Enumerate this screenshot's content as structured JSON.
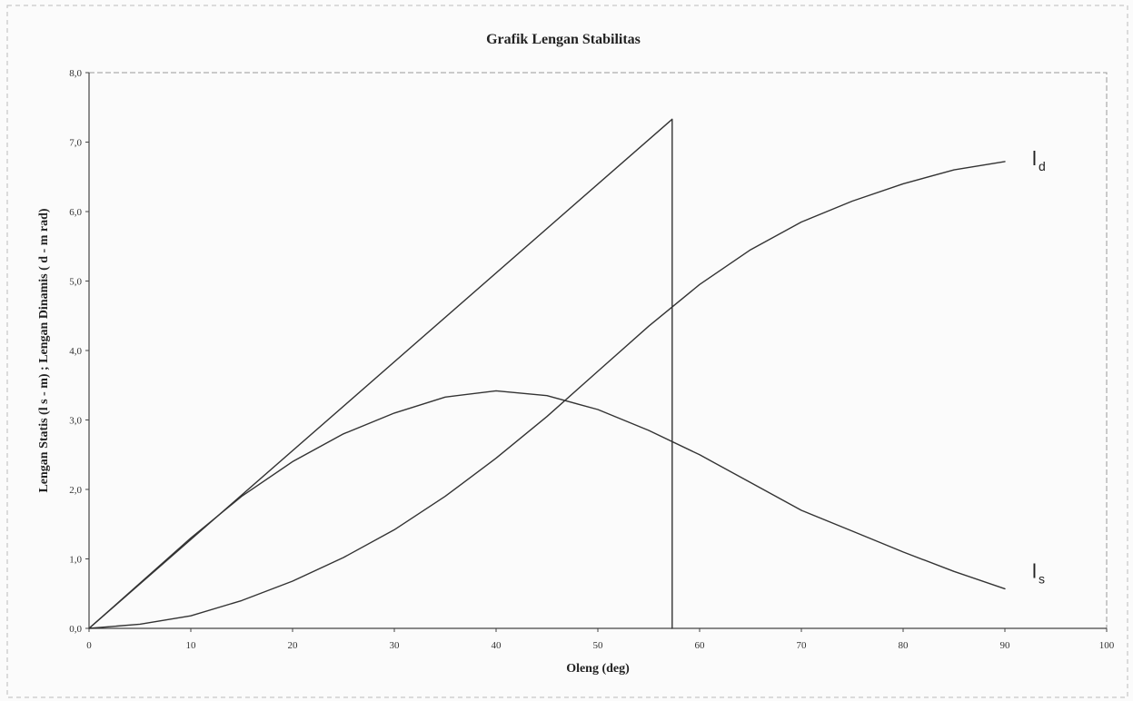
{
  "chart_data": {
    "type": "line",
    "title": "Grafik Lengan Stabilitas",
    "xlabel": "Oleng (deg)",
    "ylabel": "Lengan Statis (l s - m) ; Lengan Dinamis ( d - m rad)",
    "xlim": [
      0,
      100
    ],
    "ylim": [
      0,
      8
    ],
    "x_ticks": [
      "0",
      "10",
      "20",
      "30",
      "40",
      "50",
      "60",
      "70",
      "80",
      "90",
      "100"
    ],
    "y_ticks": [
      "0,0",
      "1,0",
      "2,0",
      "3,0",
      "4,0",
      "5,0",
      "6,0",
      "7,0",
      "8,0"
    ],
    "grid": false,
    "series": [
      {
        "name": "l_s",
        "label_main": "l",
        "label_sub": "s",
        "x": [
          0,
          5,
          10,
          15,
          20,
          25,
          30,
          35,
          40,
          45,
          50,
          55,
          60,
          65,
          70,
          75,
          80,
          85,
          90
        ],
        "y": [
          0,
          0.65,
          1.3,
          1.9,
          2.4,
          2.8,
          3.1,
          3.33,
          3.42,
          3.35,
          3.15,
          2.85,
          2.5,
          2.1,
          1.7,
          1.4,
          1.1,
          0.82,
          0.57
        ]
      },
      {
        "name": "l_d",
        "label_main": "l",
        "label_sub": "d",
        "x": [
          0,
          5,
          10,
          15,
          20,
          25,
          30,
          35,
          40,
          45,
          50,
          55,
          60,
          65,
          70,
          75,
          80,
          85,
          90
        ],
        "y": [
          0,
          0.06,
          0.18,
          0.4,
          0.68,
          1.02,
          1.42,
          1.9,
          2.45,
          3.05,
          3.7,
          4.35,
          4.95,
          5.45,
          5.85,
          6.15,
          6.4,
          6.6,
          6.72
        ]
      },
      {
        "name": "tangent",
        "x": [
          0,
          57.3,
          57.3
        ],
        "y": [
          0,
          7.33,
          0
        ]
      }
    ],
    "colors": {
      "line": "#333333",
      "axis": "#444444",
      "background": "#fbfbfb"
    }
  }
}
